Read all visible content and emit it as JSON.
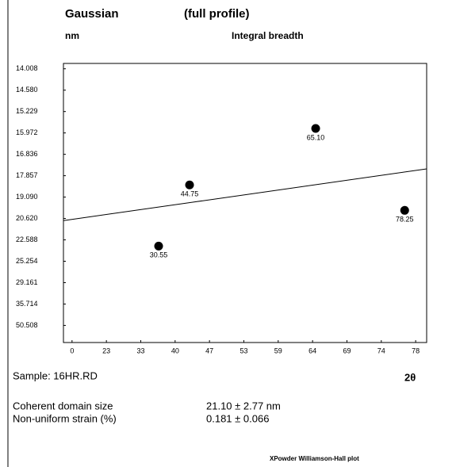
{
  "chart_data": {
    "type": "scatter",
    "title": "Gaussian",
    "subtitle": "(full profile)",
    "y_unit": "nm",
    "y_label": "Integral breadth",
    "x_label": "2θ",
    "sample": "Sample: 16HR.RD",
    "stats": [
      {
        "name": "Coherent domain size",
        "value": "21.10 ± 2.77 nm"
      },
      {
        "name": "Non-uniform strain (%)",
        "value": "0.181 ± 0.066"
      }
    ],
    "footer": "XPowder Williamson-Hall plot",
    "xlim": [
      -0.25,
      10.32
    ],
    "ylim": [
      12.8,
      -0.25
    ],
    "xticks": [
      {
        "value": 0,
        "label": "0"
      },
      {
        "value": 1,
        "label": "23"
      },
      {
        "value": 2,
        "label": "33"
      },
      {
        "value": 3,
        "label": "40"
      },
      {
        "value": 4,
        "label": "47"
      },
      {
        "value": 5,
        "label": "53"
      },
      {
        "value": 6,
        "label": "59"
      },
      {
        "value": 7,
        "label": "64"
      },
      {
        "value": 8,
        "label": "69"
      },
      {
        "value": 9,
        "label": "74"
      },
      {
        "value": 10,
        "label": "78"
      }
    ],
    "yticks": [
      {
        "value": 0,
        "label": "14.008"
      },
      {
        "value": 1,
        "label": "14.580"
      },
      {
        "value": 2,
        "label": "15.229"
      },
      {
        "value": 3,
        "label": "15.972"
      },
      {
        "value": 4,
        "label": "16.836"
      },
      {
        "value": 5,
        "label": "17.857"
      },
      {
        "value": 6,
        "label": "19.090"
      },
      {
        "value": 7,
        "label": "20.620"
      },
      {
        "value": 8,
        "label": "22.588"
      },
      {
        "value": 9,
        "label": "25.254"
      },
      {
        "value": 10,
        "label": "29.161"
      },
      {
        "value": 11,
        "label": "35.714"
      },
      {
        "value": 12,
        "label": "50.508"
      }
    ],
    "color": "#000000",
    "points": {
      "x": [
        2.52,
        3.42,
        7.09,
        9.68
      ],
      "y": [
        8.29,
        5.43,
        2.79,
        6.62
      ],
      "labels": [
        "30.55",
        "44.75",
        "65.10",
        "78.25"
      ]
    },
    "fit_line": {
      "x": [
        -0.25,
        10.32
      ],
      "y": [
        7.1,
        4.68
      ]
    }
  }
}
